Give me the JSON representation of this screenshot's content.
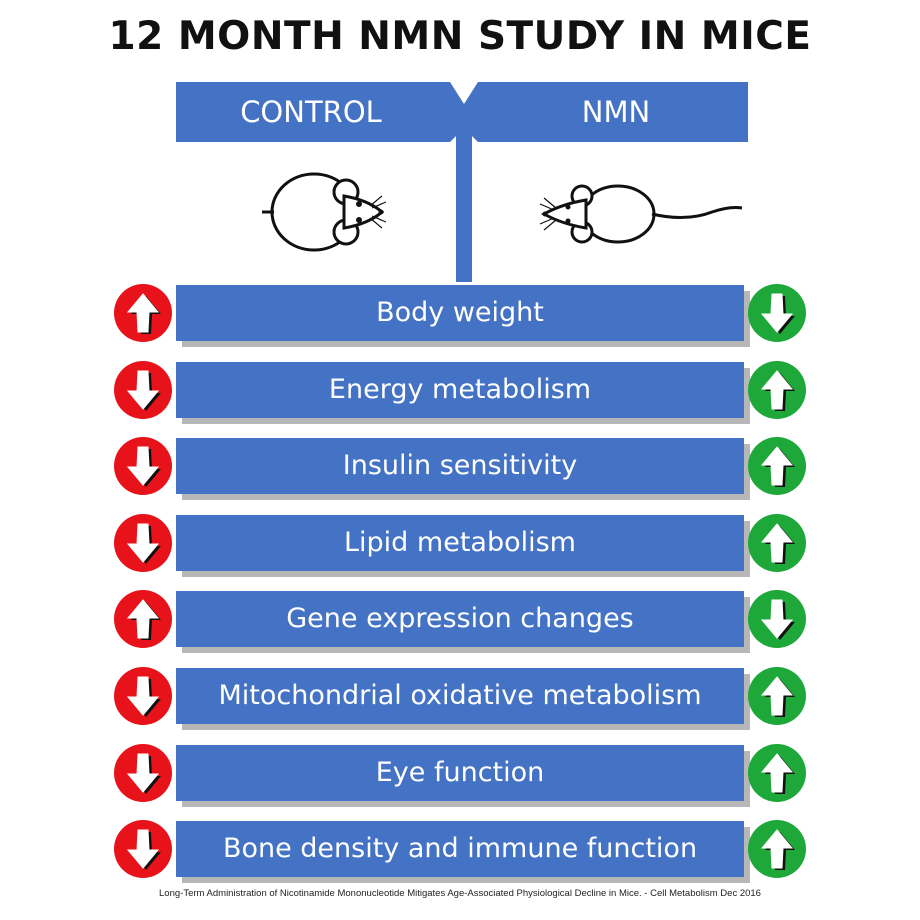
{
  "title": "12 MONTH NMN STUDY IN MICE",
  "groups": {
    "control": "CONTROL",
    "nmn": "NMN"
  },
  "colors": {
    "bar": "#4472c4",
    "increase_control": "#e8131a",
    "nmn_green": "#1fa83a"
  },
  "rows": [
    {
      "label": "Body weight",
      "control": "up",
      "nmn": "down"
    },
    {
      "label": "Energy metabolism",
      "control": "down",
      "nmn": "up"
    },
    {
      "label": "Insulin sensitivity",
      "control": "down",
      "nmn": "up"
    },
    {
      "label": "Lipid metabolism",
      "control": "down",
      "nmn": "up"
    },
    {
      "label": "Gene expression changes",
      "control": "up",
      "nmn": "down"
    },
    {
      "label": "Mitochondrial oxidative metabolism",
      "control": "down",
      "nmn": "up"
    },
    {
      "label": "Eye function",
      "control": "down",
      "nmn": "up"
    },
    {
      "label": "Bone density and immune function",
      "control": "down",
      "nmn": "up"
    }
  ],
  "icons": {
    "control_mouse": "fat-mouse-icon",
    "nmn_mouse": "slim-mouse-icon",
    "arrow_up": "arrow-up-icon",
    "arrow_down": "arrow-down-icon"
  },
  "footer": "Long-Term Administration of Nicotinamide Mononucleotide Mitigates Age-Associated Physiological Decline in Mice. - Cell Metabolism Dec 2016"
}
